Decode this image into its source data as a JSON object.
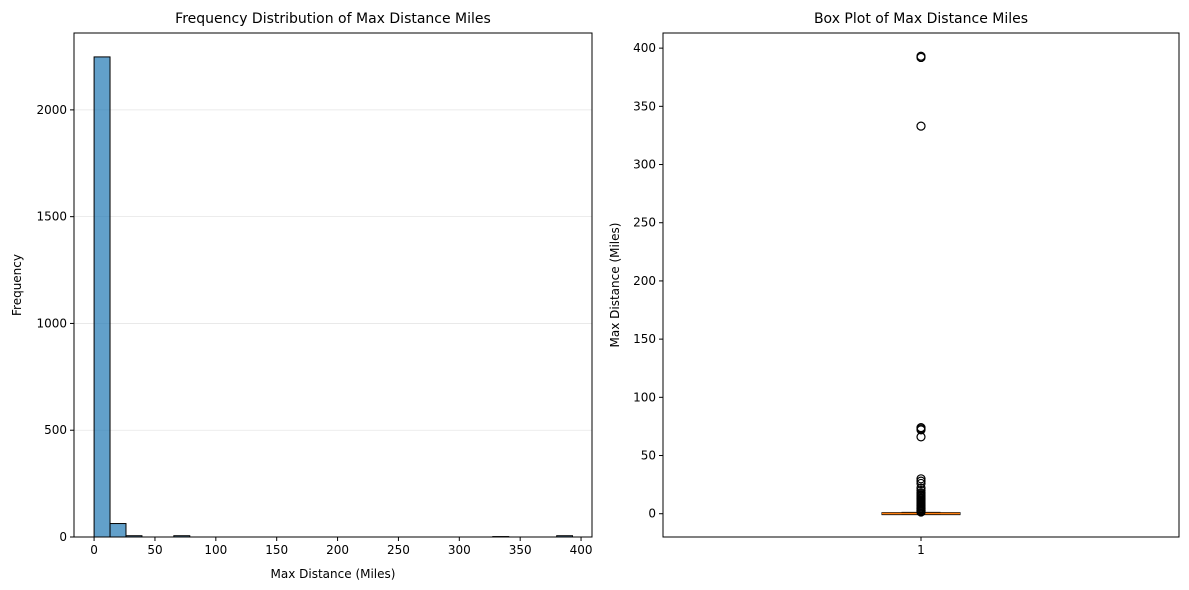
{
  "chart_data": [
    {
      "type": "bar",
      "title": "Frequency Distribution of Max Distance Miles",
      "xlabel": "Max Distance (Miles)",
      "ylabel": "Frequency",
      "xlim": [
        -16.5,
        409
      ],
      "ylim": [
        0,
        2360
      ],
      "xticks": [
        0,
        50,
        100,
        150,
        200,
        250,
        300,
        350,
        400
      ],
      "yticks": [
        0,
        500,
        1000,
        1500,
        2000
      ],
      "grid": "y",
      "bar_color": "#1f77b4",
      "bins": [
        {
          "x0": 0,
          "x1": 13.1,
          "count": 2248
        },
        {
          "x0": 13.1,
          "x1": 26.2,
          "count": 63
        },
        {
          "x0": 26.2,
          "x1": 39.3,
          "count": 6
        },
        {
          "x0": 65.5,
          "x1": 78.6,
          "count": 6
        },
        {
          "x0": 327.5,
          "x1": 340.6,
          "count": 2
        },
        {
          "x0": 380,
          "x1": 393,
          "count": 6
        }
      ]
    },
    {
      "type": "box",
      "title": "Box Plot of Max Distance Miles",
      "ylabel": "Max Distance (Miles)",
      "categories": [
        "1"
      ],
      "ylim": [
        -20,
        413
      ],
      "yticks": [
        0,
        50,
        100,
        150,
        200,
        250,
        300,
        350,
        400
      ],
      "box": {
        "q1": 0,
        "median": 0.2,
        "q3": 0.5,
        "whisker_low": 0,
        "whisker_high": 1.2
      },
      "median_color": "#ff7f0e",
      "outliers": [
        393,
        392,
        333,
        74,
        73,
        72,
        66,
        30,
        28,
        26,
        22,
        20,
        18,
        17,
        16,
        15,
        14,
        13,
        12,
        11,
        10,
        9,
        8,
        7,
        6,
        5,
        4,
        3,
        2.5,
        2,
        1.5
      ]
    }
  ]
}
